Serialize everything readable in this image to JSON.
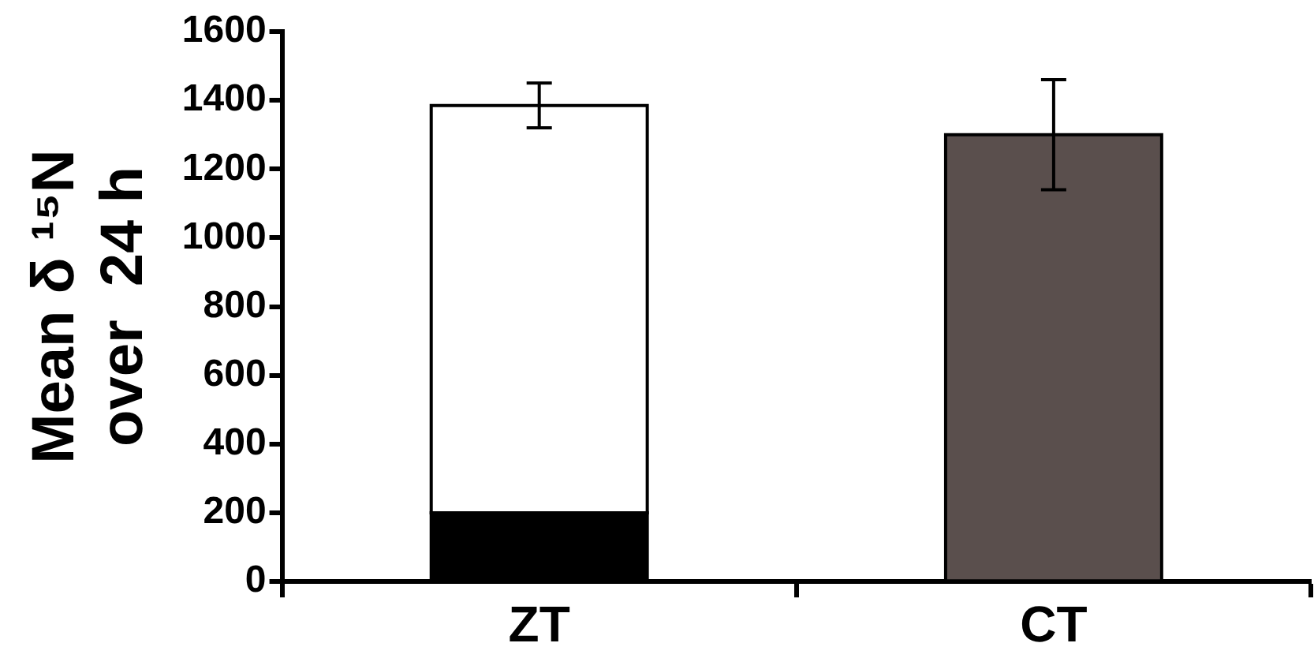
{
  "chart_data": {
    "type": "bar",
    "stacked": true,
    "ylabel": "Mean δ ¹⁵N\nover  24 h",
    "categories": [
      "ZT",
      "CT"
    ],
    "series": [
      {
        "color": "#000000",
        "values": [
          200,
          null
        ]
      },
      {
        "color": "#ffffff",
        "values": [
          1185,
          null
        ],
        "errors": [
          65,
          null
        ]
      },
      {
        "color": "#5a4f4d",
        "values": [
          null,
          1300
        ],
        "errors": [
          null,
          160
        ]
      }
    ],
    "ylim": [
      0,
      1600
    ],
    "yticks": [
      0,
      200,
      400,
      600,
      800,
      1000,
      1200,
      1400,
      1600
    ],
    "grid": false,
    "legend": false
  }
}
